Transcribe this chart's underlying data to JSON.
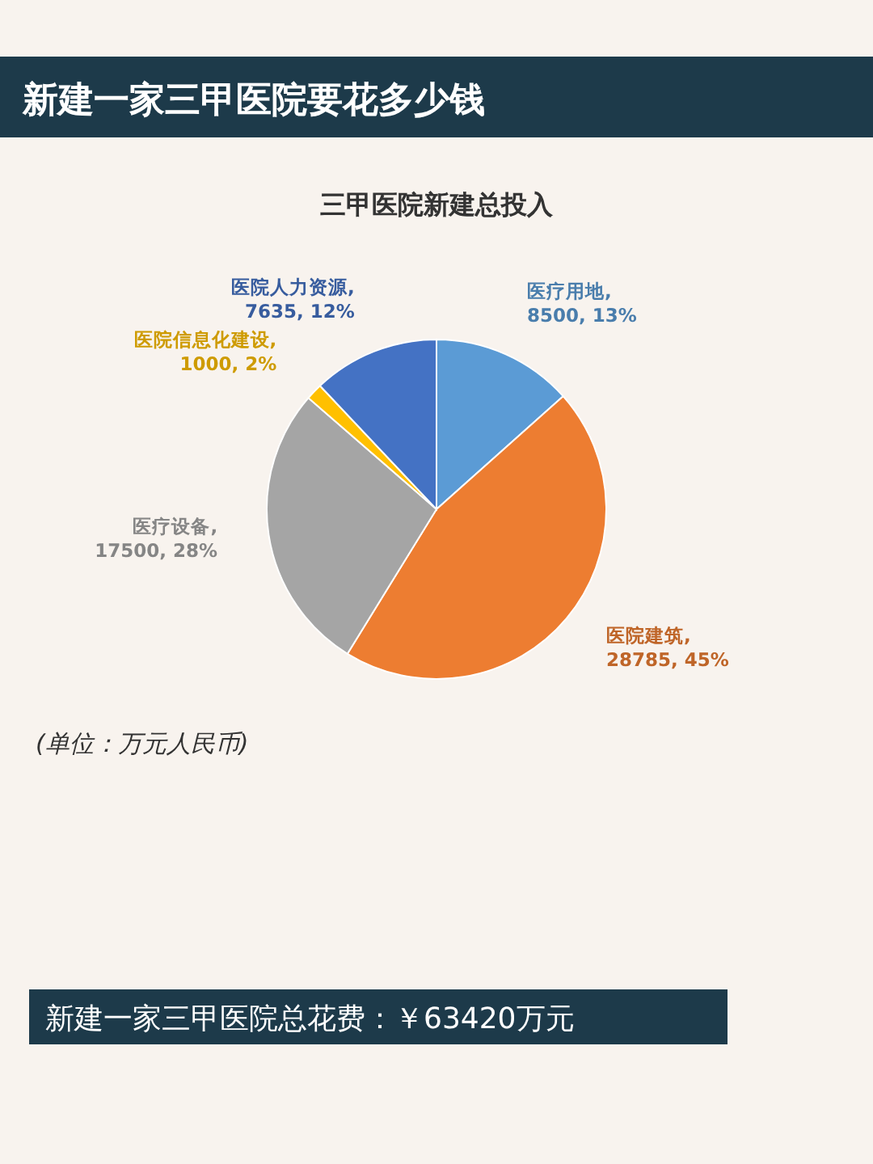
{
  "chart_data": {
    "type": "pie",
    "title": "新建一家三甲医院要花多少钱",
    "subtitle": "三甲医院新建总投入",
    "categories": [
      "医疗用地",
      "医院建筑",
      "医疗设备",
      "医院信息化建设",
      "医院人力资源"
    ],
    "values": [
      8500,
      28785,
      17500,
      1000,
      7635
    ],
    "value_labels": [
      ", 8500, 13%",
      ", 28785, 45%",
      ", 17500, 28%",
      ", 1000, 2%",
      ", 7635, 12%"
    ],
    "colors": [
      "#5b9bd5",
      "#ed7d31",
      "#a5a5a5",
      "#ffc000",
      "#4472c4"
    ],
    "annotations": [
      "(单位：万元人民币)",
      "新建一家三甲医院总花费：￥63420万元"
    ]
  }
}
